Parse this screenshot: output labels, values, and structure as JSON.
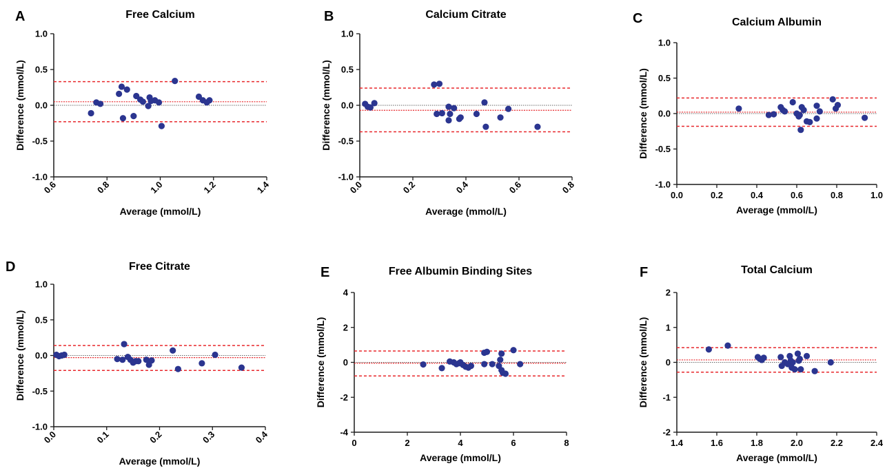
{
  "chart_data": [
    {
      "panel_label": "A",
      "type": "scatter",
      "title": "Free Calcium",
      "xlabel": "Average (mmol/L)",
      "ylabel": "Difference (mmol/L)",
      "xlim": [
        0.6,
        1.4
      ],
      "ylim": [
        -1.0,
        1.0
      ],
      "xticks": [
        "0.6",
        "0.8",
        "1.0",
        "1.2",
        "1.4"
      ],
      "yticks": [
        "-1.0",
        "-0.5",
        "0.0",
        "0.5",
        "1.0"
      ],
      "x_tick_rotation": "rotated",
      "bias": 0.05,
      "loa_upper": 0.33,
      "loa_lower": -0.23,
      "points": [
        [
          0.74,
          -0.11
        ],
        [
          0.76,
          0.04
        ],
        [
          0.775,
          0.02
        ],
        [
          0.845,
          0.16
        ],
        [
          0.855,
          0.26
        ],
        [
          0.86,
          -0.18
        ],
        [
          0.875,
          0.22
        ],
        [
          0.9,
          -0.15
        ],
        [
          0.91,
          0.13
        ],
        [
          0.925,
          0.08
        ],
        [
          0.935,
          0.05
        ],
        [
          0.955,
          -0.01
        ],
        [
          0.96,
          0.11
        ],
        [
          0.965,
          0.06
        ],
        [
          0.98,
          0.07
        ],
        [
          0.995,
          0.04
        ],
        [
          1.005,
          -0.29
        ],
        [
          1.055,
          0.34
        ],
        [
          1.145,
          0.12
        ],
        [
          1.16,
          0.07
        ],
        [
          1.175,
          0.04
        ],
        [
          1.185,
          0.07
        ]
      ]
    },
    {
      "panel_label": "B",
      "type": "scatter",
      "title": "Calcium Citrate",
      "xlabel": "Average (mmol/L)",
      "ylabel": "Difference (mmol/L)",
      "xlim": [
        0.0,
        0.8
      ],
      "ylim": [
        -1.0,
        1.0
      ],
      "xticks": [
        "0.0",
        "0.2",
        "0.4",
        "0.6",
        "0.8"
      ],
      "yticks": [
        "-1.0",
        "-0.5",
        "0.0",
        "0.5",
        "1.0"
      ],
      "x_tick_rotation": "rotated",
      "bias": -0.07,
      "loa_upper": 0.24,
      "loa_lower": -0.37,
      "points": [
        [
          0.02,
          0.02
        ],
        [
          0.03,
          -0.02
        ],
        [
          0.04,
          -0.03
        ],
        [
          0.055,
          0.03
        ],
        [
          0.28,
          0.29
        ],
        [
          0.29,
          -0.12
        ],
        [
          0.3,
          0.3
        ],
        [
          0.31,
          -0.11
        ],
        [
          0.335,
          -0.21
        ],
        [
          0.335,
          -0.02
        ],
        [
          0.34,
          -0.12
        ],
        [
          0.355,
          -0.04
        ],
        [
          0.375,
          -0.19
        ],
        [
          0.38,
          -0.17
        ],
        [
          0.44,
          -0.12
        ],
        [
          0.47,
          0.04
        ],
        [
          0.475,
          -0.3
        ],
        [
          0.53,
          -0.17
        ],
        [
          0.56,
          -0.05
        ],
        [
          0.67,
          -0.3
        ]
      ]
    },
    {
      "panel_label": "C",
      "type": "scatter",
      "title": "Calcium Albumin",
      "xlabel": "Average (mmol/L)",
      "ylabel": "Difference (mmol/L)",
      "xlim": [
        0.0,
        1.0
      ],
      "ylim": [
        -1.0,
        1.0
      ],
      "xticks": [
        "0.0",
        "0.2",
        "0.4",
        "0.6",
        "0.8",
        "1.0"
      ],
      "yticks": [
        "-1.0",
        "-0.5",
        "0.0",
        "0.5",
        "1.0"
      ],
      "x_tick_rotation": "horizontal",
      "bias": 0.02,
      "loa_upper": 0.22,
      "loa_lower": -0.18,
      "points": [
        [
          0.31,
          0.07
        ],
        [
          0.46,
          -0.02
        ],
        [
          0.485,
          -0.01
        ],
        [
          0.52,
          0.09
        ],
        [
          0.53,
          0.05
        ],
        [
          0.54,
          0.03
        ],
        [
          0.58,
          0.16
        ],
        [
          0.6,
          0.0
        ],
        [
          0.61,
          -0.04
        ],
        [
          0.615,
          -0.02
        ],
        [
          0.62,
          -0.23
        ],
        [
          0.625,
          0.09
        ],
        [
          0.635,
          0.05
        ],
        [
          0.65,
          -0.11
        ],
        [
          0.665,
          -0.12
        ],
        [
          0.7,
          -0.07
        ],
        [
          0.7,
          0.11
        ],
        [
          0.715,
          0.03
        ],
        [
          0.78,
          0.2
        ],
        [
          0.795,
          0.07
        ],
        [
          0.805,
          0.12
        ],
        [
          0.94,
          -0.06
        ]
      ]
    },
    {
      "panel_label": "D",
      "type": "scatter",
      "title": "Free Citrate",
      "xlabel": "Average (mmol/L)",
      "ylabel": "Difference (mmol/L)",
      "xlim": [
        0.0,
        0.4
      ],
      "ylim": [
        -1.0,
        1.0
      ],
      "xticks": [
        "0.0",
        "0.1",
        "0.2",
        "0.3",
        "0.4"
      ],
      "yticks": [
        "-1.0",
        "-0.5",
        "0.0",
        "0.5",
        "1.0"
      ],
      "x_tick_rotation": "rotated",
      "bias": -0.03,
      "loa_upper": 0.14,
      "loa_lower": -0.21,
      "points": [
        [
          0.005,
          0.01
        ],
        [
          0.01,
          -0.01
        ],
        [
          0.015,
          0.0
        ],
        [
          0.02,
          0.01
        ],
        [
          0.12,
          -0.05
        ],
        [
          0.13,
          -0.06
        ],
        [
          0.133,
          0.16
        ],
        [
          0.14,
          -0.02
        ],
        [
          0.145,
          -0.06
        ],
        [
          0.15,
          -0.1
        ],
        [
          0.155,
          -0.08
        ],
        [
          0.16,
          -0.08
        ],
        [
          0.175,
          -0.06
        ],
        [
          0.18,
          -0.13
        ],
        [
          0.185,
          -0.07
        ],
        [
          0.225,
          0.07
        ],
        [
          0.235,
          -0.19
        ],
        [
          0.28,
          -0.11
        ],
        [
          0.305,
          0.01
        ],
        [
          0.355,
          -0.17
        ]
      ]
    },
    {
      "panel_label": "E",
      "type": "scatter",
      "title": "Free Albumin Binding Sites",
      "xlabel": "Average (mmol/L)",
      "ylabel": "Difference (mmol/L)",
      "xlim": [
        0,
        8
      ],
      "ylim": [
        -4,
        4
      ],
      "xticks": [
        "0",
        "2",
        "4",
        "6",
        "8"
      ],
      "yticks": [
        "-4",
        "-2",
        "0",
        "2",
        "4"
      ],
      "x_tick_rotation": "horizontal",
      "bias": -0.05,
      "loa_upper": 0.65,
      "loa_lower": -0.78,
      "points": [
        [
          2.6,
          -0.12
        ],
        [
          3.3,
          -0.33
        ],
        [
          3.6,
          0.05
        ],
        [
          3.75,
          0.0
        ],
        [
          3.85,
          -0.1
        ],
        [
          3.95,
          -0.05
        ],
        [
          4.0,
          0.0
        ],
        [
          4.1,
          -0.15
        ],
        [
          4.2,
          -0.25
        ],
        [
          4.3,
          -0.3
        ],
        [
          4.4,
          -0.2
        ],
        [
          4.9,
          0.55
        ],
        [
          5.0,
          0.6
        ],
        [
          4.9,
          -0.1
        ],
        [
          5.2,
          -0.1
        ],
        [
          5.45,
          -0.2
        ],
        [
          5.5,
          0.15
        ],
        [
          5.55,
          0.5
        ],
        [
          5.55,
          -0.45
        ],
        [
          5.6,
          -0.6
        ],
        [
          5.7,
          -0.65
        ],
        [
          6.0,
          0.7
        ],
        [
          6.25,
          -0.1
        ]
      ]
    },
    {
      "panel_label": "F",
      "type": "scatter",
      "title": "Total Calcium",
      "xlabel": "Average (mmol/L)",
      "ylabel": "Difference (mmol/L)",
      "xlim": [
        1.4,
        2.4
      ],
      "ylim": [
        -2,
        2
      ],
      "xticks": [
        "1.4",
        "1.6",
        "1.8",
        "2.0",
        "2.2",
        "2.4"
      ],
      "yticks": [
        "-2",
        "-1",
        "0",
        "1",
        "2"
      ],
      "x_tick_rotation": "horizontal",
      "bias": 0.07,
      "loa_upper": 0.42,
      "loa_lower": -0.28,
      "points": [
        [
          1.56,
          0.37
        ],
        [
          1.655,
          0.48
        ],
        [
          1.805,
          0.15
        ],
        [
          1.815,
          0.1
        ],
        [
          1.825,
          0.07
        ],
        [
          1.835,
          0.13
        ],
        [
          1.92,
          0.15
        ],
        [
          1.925,
          -0.1
        ],
        [
          1.94,
          0.0
        ],
        [
          1.955,
          -0.05
        ],
        [
          1.965,
          0.18
        ],
        [
          1.97,
          0.05
        ],
        [
          1.975,
          -0.15
        ],
        [
          1.98,
          0.0
        ],
        [
          1.99,
          -0.2
        ],
        [
          2.005,
          0.25
        ],
        [
          2.01,
          0.05
        ],
        [
          2.015,
          0.1
        ],
        [
          2.02,
          -0.2
        ],
        [
          2.05,
          0.18
        ],
        [
          2.09,
          -0.25
        ],
        [
          2.17,
          0.0
        ]
      ]
    }
  ]
}
